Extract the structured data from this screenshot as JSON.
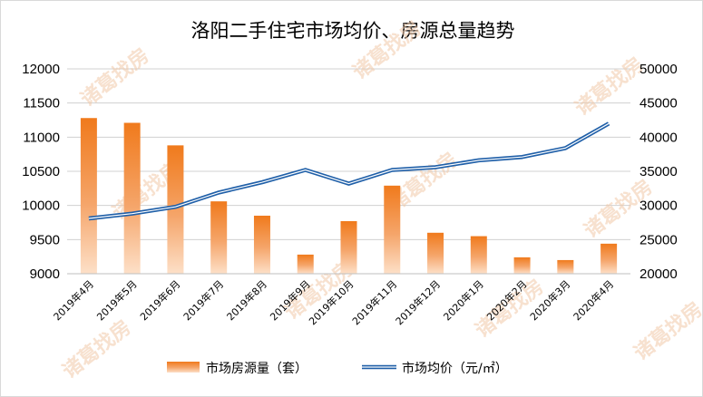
{
  "watermark": "诸葛找房",
  "colors": {
    "bar_top": "#f07a1c",
    "bar_bottom": "#fde0c8",
    "line": "#1f5fa8",
    "line_inner": "#ffffff",
    "grid": "#d0d0d0"
  },
  "chart_data": {
    "type": "bar",
    "title": "洛阳二手住宅市场均价、房源总量趋势",
    "categories": [
      "2019年4月",
      "2019年5月",
      "2019年6月",
      "2019年7月",
      "2019年8月",
      "2019年9月",
      "2019年10月",
      "2019年11月",
      "2019年12月",
      "2020年1月",
      "2020年2月",
      "2020年3月",
      "2020年4月"
    ],
    "series": [
      {
        "name": "市场房源量（套）",
        "type": "bar",
        "axis": "left",
        "values": [
          11280,
          11210,
          10880,
          10060,
          9850,
          9280,
          9770,
          10290,
          9600,
          9550,
          9240,
          9200,
          9440
        ]
      },
      {
        "name": "市场均价（元/㎡）",
        "type": "line",
        "axis": "right",
        "values": [
          28100,
          28800,
          29800,
          31900,
          33400,
          35200,
          33200,
          35200,
          35600,
          36600,
          37100,
          38400,
          42000
        ]
      }
    ],
    "y_left": {
      "min": 9000,
      "max": 12000,
      "step": 500,
      "ticks": [
        "9000",
        "9500",
        "10000",
        "10500",
        "11000",
        "11500",
        "12000"
      ]
    },
    "y_right": {
      "min": 20000,
      "max": 50000,
      "step": 5000,
      "ticks": [
        "20000",
        "25000",
        "30000",
        "35000",
        "40000",
        "45000",
        "50000"
      ]
    },
    "grid": true,
    "legend": "bottom"
  }
}
